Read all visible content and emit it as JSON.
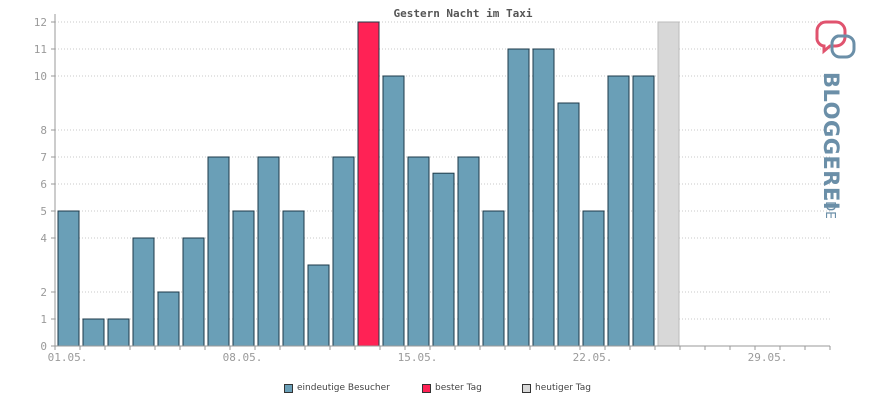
{
  "chart_data": {
    "type": "bar",
    "title": "Gestern Nacht im Taxi",
    "y_ticks": [
      0,
      1,
      2,
      4,
      5,
      6,
      7,
      8,
      10,
      11,
      12
    ],
    "x_labels": [
      {
        "label": "01.05.",
        "index": 0
      },
      {
        "label": "08.05.",
        "index": 7
      },
      {
        "label": "15.05.",
        "index": 14
      },
      {
        "label": "22.05.",
        "index": 21
      },
      {
        "label": "29.05.",
        "index": 28
      }
    ],
    "num_days": 31,
    "values": [
      5,
      1,
      1,
      4,
      2,
      4,
      7,
      5,
      7,
      5,
      3,
      7,
      12,
      10,
      7,
      6.4,
      7,
      5,
      11,
      11,
      9,
      5,
      10,
      10,
      12
    ],
    "kinds": [
      "n",
      "n",
      "n",
      "n",
      "n",
      "n",
      "n",
      "n",
      "n",
      "n",
      "n",
      "n",
      "best",
      "n",
      "n",
      "n",
      "n",
      "n",
      "n",
      "n",
      "n",
      "n",
      "n",
      "n",
      "today"
    ],
    "colors": {
      "normal": "#6a9fb7",
      "best": "#ff2255",
      "today": "#d8d8d8"
    },
    "grid": true,
    "legend_position": "bottom"
  },
  "legend": {
    "items": [
      {
        "label": "eindeutige Besucher",
        "color": "#6a9fb7"
      },
      {
        "label": "bester Tag",
        "color": "#ff2255"
      },
      {
        "label": "heutiger Tag",
        "color": "#d8d8d8"
      }
    ]
  },
  "logo": {
    "text": "BLOGGEREI",
    "suffix": ".DE"
  }
}
